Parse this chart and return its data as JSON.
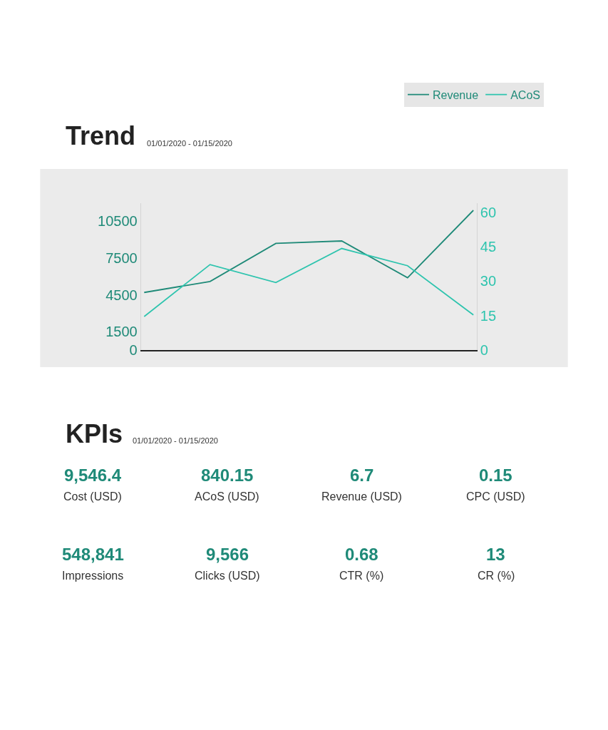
{
  "chart_data": [
    {
      "type": "line",
      "title": "Trend",
      "subtitle": "01/01/2020 - 01/15/2020",
      "categories": [
        null,
        null,
        null,
        null,
        null,
        null
      ],
      "series": [
        {
          "name": "Revenue",
          "color": "#1f8a78",
          "values": [
            4700,
            5600,
            8700,
            8900,
            5900,
            11400
          ]
        },
        {
          "name": "ACoS",
          "color": "#2ec4ae",
          "axis": "y2",
          "values": [
            14.6,
            37.2,
            29.4,
            44.2,
            36.7,
            15.3
          ]
        }
      ],
      "ylim": [
        0,
        12000
      ],
      "yticks": [
        0,
        1500,
        4500,
        7500,
        10500
      ],
      "y2lim": [
        0,
        64
      ],
      "y2ticks": [
        0,
        15,
        30,
        45,
        60
      ],
      "grid": false,
      "legend": "top right",
      "marker": "none",
      "line_style": "solid"
    },
    {
      "type": "other",
      "title": "KPIs",
      "subtitle": "01/01/2020 - 01/15/2020",
      "annotations": [
        "9,546.4",
        "Cost (USD)",
        "840.15",
        "ACoS (USD)",
        "6.7",
        "Revenue (USD)",
        "0.15",
        "CPC (USD)",
        "548,841",
        "Impressions",
        "9,566",
        "Clicks (USD)",
        "0.68",
        "CTR (%)",
        "13",
        "CR (%)"
      ]
    }
  ]
}
